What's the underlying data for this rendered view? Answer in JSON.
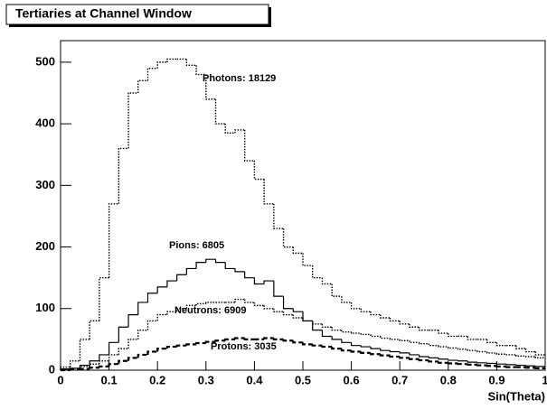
{
  "chart_data": {
    "type": "histogram",
    "title": "Tertiaries at Channel Window",
    "x_label": "Sin(Theta)",
    "bins": [
      0,
      0.02,
      0.04,
      0.06,
      0.08,
      0.1,
      0.12,
      0.14,
      0.16,
      0.18,
      0.2,
      0.22,
      0.24,
      0.26,
      0.28,
      0.3,
      0.32,
      0.34,
      0.36,
      0.38,
      0.4,
      0.42,
      0.44,
      0.46,
      0.48,
      0.5,
      0.52,
      0.54,
      0.56,
      0.58,
      0.6,
      0.62,
      0.64,
      0.66,
      0.68,
      0.7,
      0.72,
      0.74,
      0.76,
      0.78,
      0.8,
      0.82,
      0.84,
      0.86,
      0.88,
      0.9,
      0.92,
      0.94,
      0.96,
      0.98,
      1
    ],
    "xlim": [
      0,
      1
    ],
    "xticks": [
      0,
      0.1,
      0.2,
      0.3,
      0.4,
      0.5,
      0.6,
      0.7,
      0.8,
      0.9,
      1
    ],
    "ylim": [
      0,
      535
    ],
    "yticks": [
      0,
      100,
      200,
      300,
      400,
      500
    ],
    "series": [
      {
        "name": "Photons: 18129",
        "color": "#000000",
        "dash": "dotted",
        "values": [
          5,
          15,
          50,
          80,
          150,
          270,
          360,
          450,
          470,
          490,
          500,
          505,
          505,
          495,
          480,
          440,
          400,
          385,
          390,
          340,
          310,
          270,
          230,
          200,
          190,
          170,
          150,
          140,
          120,
          110,
          100,
          95,
          90,
          85,
          80,
          75,
          70,
          65,
          65,
          60,
          55,
          55,
          50,
          50,
          45,
          40,
          40,
          35,
          30,
          25
        ]
      },
      {
        "name": "Pions: 6805",
        "color": "#000000",
        "dash": "solid",
        "values": [
          2,
          3,
          8,
          15,
          25,
          45,
          70,
          90,
          110,
          125,
          135,
          145,
          155,
          165,
          175,
          180,
          175,
          165,
          160,
          150,
          140,
          145,
          120,
          100,
          95,
          80,
          65,
          55,
          50,
          45,
          40,
          38,
          35,
          32,
          30,
          28,
          25,
          22,
          20,
          18,
          16,
          15,
          13,
          12,
          11,
          10,
          9,
          8,
          7,
          6
        ]
      },
      {
        "name": "Neutrons: 6909",
        "color": "#000000",
        "dash": "dotted",
        "values": [
          1,
          3,
          6,
          10,
          15,
          25,
          35,
          50,
          65,
          80,
          90,
          95,
          100,
          105,
          108,
          110,
          110,
          110,
          115,
          110,
          105,
          100,
          95,
          90,
          85,
          80,
          75,
          70,
          65,
          62,
          60,
          58,
          55,
          52,
          50,
          48,
          45,
          43,
          40,
          38,
          36,
          34,
          32,
          30,
          28,
          26,
          25,
          23,
          22,
          20
        ]
      },
      {
        "name": "Protons: 3035",
        "color": "#000000",
        "dash": "dashed",
        "values": [
          0,
          1,
          2,
          4,
          6,
          10,
          15,
          20,
          25,
          30,
          35,
          38,
          40,
          42,
          44,
          46,
          48,
          50,
          52,
          50,
          50,
          52,
          50,
          48,
          45,
          42,
          40,
          38,
          35,
          32,
          30,
          28,
          26,
          24,
          22,
          20,
          18,
          16,
          14,
          12,
          11,
          10,
          9,
          8,
          7,
          6,
          5,
          5,
          4,
          3
        ]
      }
    ]
  }
}
